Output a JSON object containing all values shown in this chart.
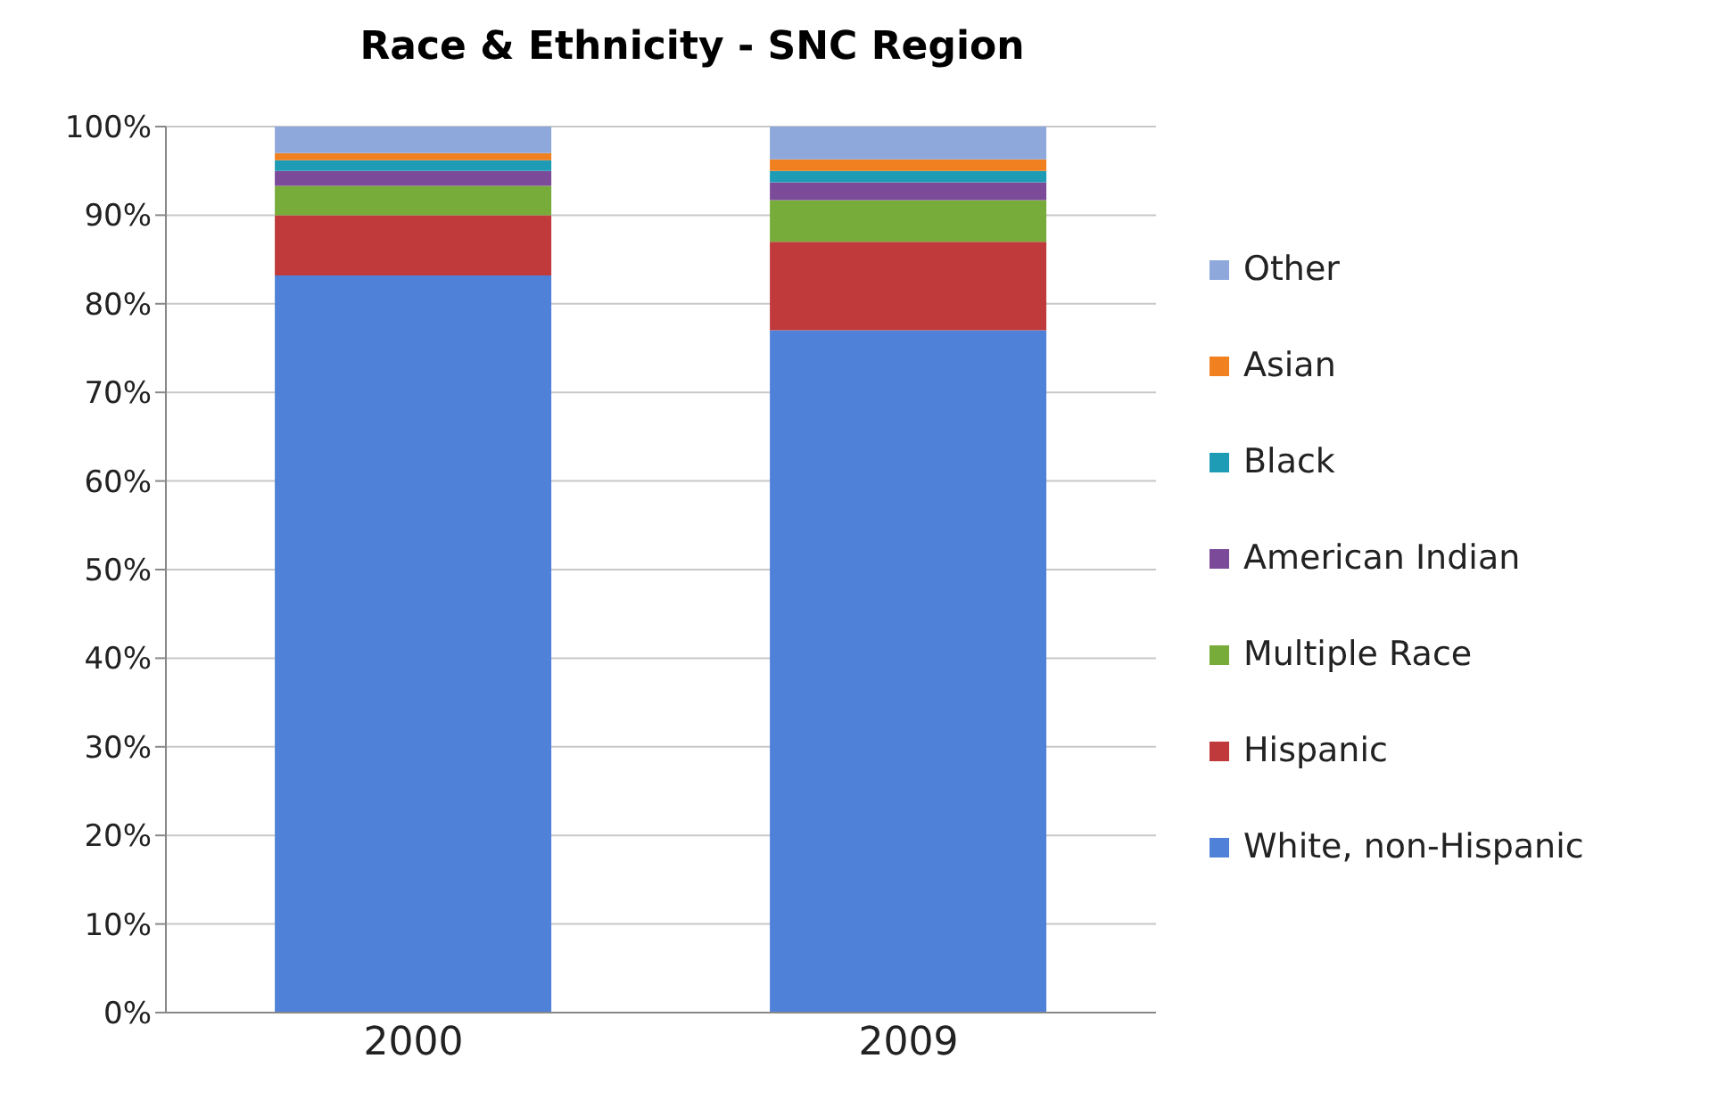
{
  "chart_data": {
    "type": "bar",
    "title": "Race & Ethnicity - SNC Region",
    "categories": [
      "2000",
      "2009"
    ],
    "stacked": true,
    "series": [
      {
        "name": "White, non-Hispanic",
        "color": "#4f81d9",
        "values": [
          83.2,
          77.0
        ]
      },
      {
        "name": "Hispanic",
        "color": "#c0393b",
        "values": [
          6.8,
          10.0
        ]
      },
      {
        "name": "Multiple Race",
        "color": "#77ac3a",
        "values": [
          3.3,
          4.7
        ]
      },
      {
        "name": "American Indian",
        "color": "#7b4b9a",
        "values": [
          1.7,
          2.0
        ]
      },
      {
        "name": "Black",
        "color": "#1e9cb5",
        "values": [
          1.2,
          1.3
        ]
      },
      {
        "name": "Asian",
        "color": "#f08020",
        "values": [
          0.8,
          1.3
        ]
      },
      {
        "name": "Other",
        "color": "#8fa8dc",
        "values": [
          3.0,
          3.7
        ]
      }
    ],
    "ylim": [
      0,
      100
    ],
    "yticks": [
      {
        "value": 0,
        "label": "0%"
      },
      {
        "value": 10,
        "label": "10%"
      },
      {
        "value": 20,
        "label": "20%"
      },
      {
        "value": 30,
        "label": "30%"
      },
      {
        "value": 40,
        "label": "40%"
      },
      {
        "value": 50,
        "label": "50%"
      },
      {
        "value": 60,
        "label": "60%"
      },
      {
        "value": 70,
        "label": "70%"
      },
      {
        "value": 80,
        "label": "80%"
      },
      {
        "value": 90,
        "label": "90%"
      },
      {
        "value": 100,
        "label": "100%"
      }
    ],
    "grid": "y",
    "legend": "right"
  }
}
